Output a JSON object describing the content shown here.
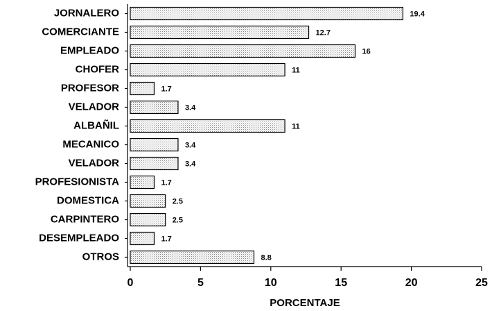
{
  "chart_data": {
    "type": "bar",
    "orientation": "horizontal",
    "x_label": "PORCENTAJE",
    "categories": [
      "JORNALERO",
      "COMERCIANTE",
      "EMPLEADO",
      "CHOFER",
      "PROFESOR",
      "VELADOR",
      "ALBAÑIL",
      "MECANICO",
      "VELADOR",
      "PROFESIONISTA",
      "DOMESTICA",
      "CARPINTERO",
      "DESEMPLEADO",
      "OTROS"
    ],
    "values": [
      19.4,
      12.7,
      16,
      11,
      1.7,
      3.4,
      11,
      3.4,
      3.4,
      1.7,
      2.5,
      2.5,
      1.7,
      8.8
    ],
    "color": "#d8d8d8",
    "xlim": [
      0,
      25
    ],
    "xticks": [
      0,
      5,
      10,
      15,
      20,
      25
    ]
  }
}
